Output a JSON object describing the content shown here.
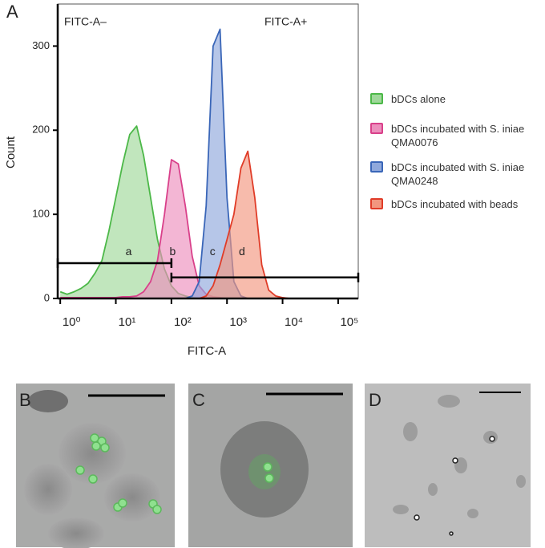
{
  "panel_letters": [
    "A",
    "B",
    "C",
    "D"
  ],
  "chart_data": {
    "type": "histogram-overlay",
    "xlabel": "FITC-A",
    "ylabel": "Count",
    "labels": {
      "negative": "FITC-A–",
      "positive": "FITC-A+"
    },
    "xscale": "log",
    "xlim": [
      0.9,
      230000
    ],
    "ylim": [
      0,
      350
    ],
    "xticks": [
      {
        "value": 1,
        "label": "10⁰"
      },
      {
        "value": 10,
        "label": "10¹"
      },
      {
        "value": 100,
        "label": "10²"
      },
      {
        "value": 1000,
        "label": "10³"
      },
      {
        "value": 10000,
        "label": "10⁴"
      },
      {
        "value": 100000,
        "label": "10⁵"
      }
    ],
    "yticks": [
      0,
      100,
      200,
      300
    ],
    "x": [
      1,
      1.33,
      1.78,
      2.37,
      3.16,
      4.22,
      5.62,
      7.5,
      10,
      13.3,
      17.8,
      23.7,
      31.6,
      42.2,
      56.2,
      75,
      100,
      133,
      178,
      237,
      316,
      422,
      562,
      750,
      1000,
      1330,
      1780,
      2370,
      3160,
      4220,
      5620,
      7500,
      10000,
      13300,
      17800,
      23700,
      31600,
      42200,
      56200,
      75000,
      100000
    ],
    "series": [
      {
        "name": "bDCs alone",
        "color": "#4cb848",
        "fill": "#9fd89a",
        "values": [
          8,
          5,
          8,
          12,
          18,
          30,
          45,
          80,
          120,
          160,
          195,
          205,
          170,
          120,
          70,
          35,
          15,
          6,
          3,
          1,
          0,
          0,
          0,
          0,
          0,
          0,
          0,
          0,
          0,
          0,
          0,
          0,
          0,
          0,
          0,
          0,
          0,
          0,
          0,
          0,
          0
        ]
      },
      {
        "name": "bDCs incubated with S. iniae QMA0076",
        "color": "#d9408a",
        "fill": "#ec8fbd",
        "values": [
          1,
          1,
          1,
          1,
          1,
          1,
          1,
          1,
          1,
          2,
          2,
          3,
          8,
          20,
          45,
          100,
          165,
          160,
          110,
          50,
          15,
          5,
          2,
          1,
          0,
          0,
          0,
          0,
          0,
          0,
          0,
          0,
          0,
          0,
          0,
          0,
          0,
          0,
          0,
          0,
          0
        ]
      },
      {
        "name": "bDCs incubated with S. iniae QMA0248",
        "color": "#3a66b8",
        "fill": "#8fa8dc",
        "values": [
          0,
          0,
          0,
          0,
          0,
          0,
          0,
          0,
          0,
          0,
          0,
          0,
          0,
          0,
          0,
          0,
          0,
          0,
          0,
          3,
          20,
          110,
          300,
          320,
          120,
          20,
          3,
          0,
          0,
          0,
          0,
          0,
          0,
          0,
          0,
          0,
          0,
          0,
          0,
          0,
          0
        ]
      },
      {
        "name": "bDCs incubated with beads",
        "color": "#e03c28",
        "fill": "#f2967f",
        "values": [
          0,
          0,
          0,
          0,
          0,
          0,
          0,
          0,
          0,
          0,
          0,
          0,
          0,
          0,
          0,
          0,
          0,
          0,
          0,
          0,
          0,
          3,
          15,
          40,
          70,
          100,
          155,
          175,
          120,
          40,
          10,
          3,
          1,
          0,
          0,
          0,
          0,
          0,
          0,
          0,
          0
        ]
      }
    ],
    "gates": [
      {
        "range": [
          0.9,
          100
        ],
        "level": 42
      },
      {
        "range": [
          100,
          230000
        ],
        "level": 25
      }
    ],
    "annotations": [
      {
        "text": "a",
        "x": 17,
        "y": 55
      },
      {
        "text": "b",
        "x": 105,
        "y": 55
      },
      {
        "text": "c",
        "x": 550,
        "y": 55
      },
      {
        "text": "d",
        "x": 1860,
        "y": 55
      }
    ]
  }
}
